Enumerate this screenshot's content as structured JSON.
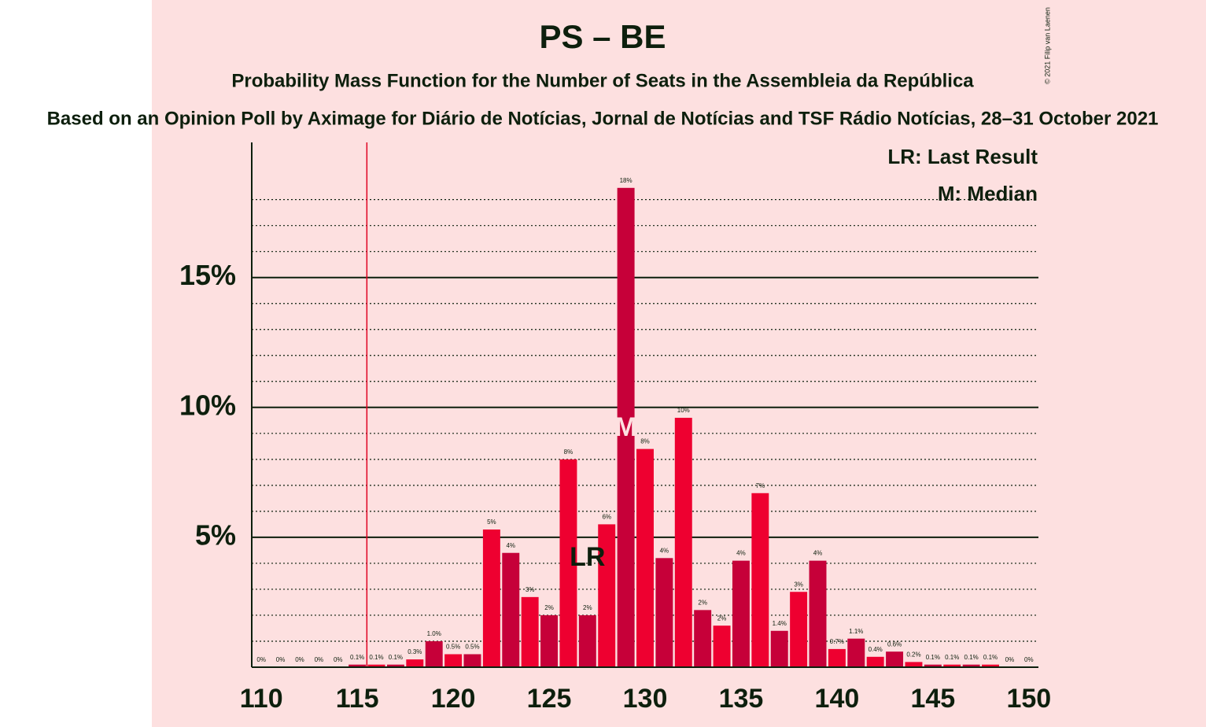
{
  "chart_data": {
    "type": "bar",
    "title": "PS – BE",
    "subtitle": "Probability Mass Function for the Number of Seats in the Assembleia da República",
    "caption": "Based on an Opinion Poll by Aximage for Diário de Notícias, Jornal de Notícias and TSF Rádio Notícias, 28–31 October 2021",
    "copyright": "© 2021 Filip van Laenen",
    "legend": [
      "LR: Last Result",
      "M: Median"
    ],
    "x": [
      110,
      111,
      112,
      113,
      114,
      115,
      116,
      117,
      118,
      119,
      120,
      121,
      122,
      123,
      124,
      125,
      126,
      127,
      128,
      129,
      130,
      131,
      132,
      133,
      134,
      135,
      136,
      137,
      138,
      139,
      140,
      141,
      142,
      143,
      144,
      145,
      146,
      147,
      148,
      149,
      150
    ],
    "values": [
      0,
      0,
      0,
      0,
      0,
      0.1,
      0.1,
      0.1,
      0.3,
      1.0,
      0.5,
      0.5,
      5.3,
      4.4,
      2.7,
      2.0,
      8.0,
      2.0,
      5.5,
      18.45,
      8.4,
      4.2,
      9.6,
      2.2,
      1.6,
      4.1,
      6.7,
      1.4,
      2.9,
      4.1,
      0.7,
      1.1,
      0.4,
      0.6,
      0.2,
      0.1,
      0.1,
      0.1,
      0.1,
      0,
      0
    ],
    "value_labels": [
      "0%",
      "0%",
      "0%",
      "0%",
      "0%",
      "0.1%",
      "0.1%",
      "0.1%",
      "0.3%",
      "1.0%",
      "0.5%",
      "0.5%",
      "5%",
      "4%",
      "3%",
      "2%",
      "8%",
      "2%",
      "6%",
      "18%",
      "8%",
      "4%",
      "10%",
      "2%",
      "2%",
      "4%",
      "7%",
      "1.4%",
      "3%",
      "4%",
      "0.7%",
      "1.1%",
      "0.4%",
      "0.6%",
      "0.2%",
      "0.1%",
      "0.1%",
      "0.1%",
      "0.1%",
      "0%",
      "0%"
    ],
    "colors": [
      "#ee0030",
      "#c60039"
    ],
    "xlim": [
      109.5,
      150.5
    ],
    "xticks": [
      110,
      115,
      120,
      125,
      130,
      135,
      140,
      145,
      150
    ],
    "ylim": [
      0,
      20.2
    ],
    "yticks": [
      {
        "value": 5,
        "label": "5%"
      },
      {
        "value": 10,
        "label": "10%"
      },
      {
        "value": 15,
        "label": "15%"
      }
    ],
    "minor_yticks": [
      1,
      2,
      3,
      4,
      6,
      7,
      8,
      9,
      11,
      12,
      13,
      14,
      16,
      17,
      18
    ],
    "threshold": 115.5,
    "last_result": {
      "x": 127,
      "label": "LR"
    },
    "median": {
      "x": 129,
      "label": "M"
    }
  }
}
